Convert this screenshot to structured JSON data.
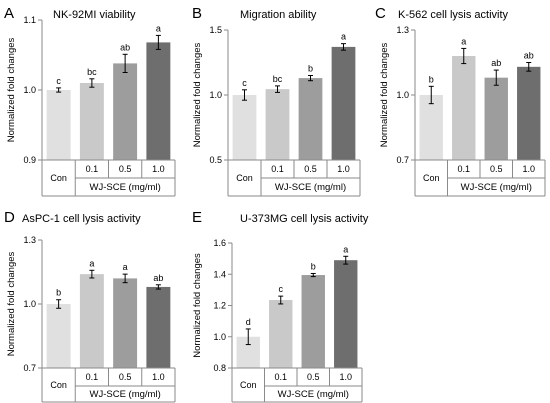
{
  "chart_data": [
    {
      "panel": "A",
      "title": "NK-92MI viability",
      "type": "bar",
      "ylabel": "Normalized fold changes",
      "group_label": "WJ-SCE (mg/ml)",
      "categories": [
        "Con",
        "0.1",
        "0.5",
        "1.0"
      ],
      "values": [
        1.0,
        1.01,
        1.038,
        1.068
      ],
      "errors": [
        0.003,
        0.006,
        0.013,
        0.01
      ],
      "significance": [
        "c",
        "bc",
        "ab",
        "a"
      ],
      "ylim": [
        0.9,
        1.1
      ],
      "yticks": [
        "0.9",
        "1.0",
        "1.1"
      ],
      "ytick_values": [
        0.9,
        1.0,
        1.1
      ],
      "colors": [
        "#e0e0e0",
        "#c9c9c9",
        "#9d9d9d",
        "#6e6e6e"
      ]
    },
    {
      "panel": "B",
      "title": "Migration ability",
      "type": "bar",
      "ylabel": "Normalized fold changes",
      "group_label": "WJ-SCE (mg/ml)",
      "categories": [
        "Con",
        "0.1",
        "0.5",
        "1.0"
      ],
      "values": [
        1.0,
        1.045,
        1.13,
        1.37
      ],
      "errors": [
        0.04,
        0.025,
        0.02,
        0.025
      ],
      "significance": [
        "c",
        "bc",
        "b",
        "a"
      ],
      "ylim": [
        0.5,
        1.5
      ],
      "yticks": [
        "0.5",
        "1.0",
        "1.5"
      ],
      "ytick_values": [
        0.5,
        1.0,
        1.5
      ],
      "colors": [
        "#e0e0e0",
        "#c9c9c9",
        "#9d9d9d",
        "#6e6e6e"
      ]
    },
    {
      "panel": "C",
      "title": "K-562 cell lysis activity",
      "type": "bar",
      "ylabel": "Normalized fold changes",
      "group_label": "WJ-SCE (mg/ml)",
      "categories": [
        "Con",
        "0.1",
        "0.5",
        "1.0"
      ],
      "values": [
        1.0,
        1.18,
        1.08,
        1.13
      ],
      "errors": [
        0.04,
        0.035,
        0.035,
        0.02
      ],
      "significance": [
        "b",
        "a",
        "ab",
        "ab"
      ],
      "ylim": [
        0.7,
        1.3
      ],
      "yticks": [
        "0.7",
        "1.0",
        "1.3"
      ],
      "ytick_values": [
        0.7,
        1.0,
        1.3
      ],
      "colors": [
        "#e0e0e0",
        "#c9c9c9",
        "#9d9d9d",
        "#6e6e6e"
      ]
    },
    {
      "panel": "D",
      "title": "AsPC-1  cell lysis activity",
      "type": "bar",
      "ylabel": "Normalized fold changes",
      "group_label": "WJ-SCE (mg/ml)",
      "categories": [
        "Con",
        "0.1",
        "0.5",
        "1.0"
      ],
      "values": [
        1.0,
        1.14,
        1.12,
        1.08
      ],
      "errors": [
        0.02,
        0.018,
        0.02,
        0.01
      ],
      "significance": [
        "b",
        "a",
        "a",
        "ab"
      ],
      "ylim": [
        0.7,
        1.3
      ],
      "yticks": [
        "0.7",
        "1.0",
        "1.3"
      ],
      "ytick_values": [
        0.7,
        1.0,
        1.3
      ],
      "colors": [
        "#e0e0e0",
        "#c9c9c9",
        "#9d9d9d",
        "#6e6e6e"
      ]
    },
    {
      "panel": "E",
      "title": "U-373MG  cell lysis activity",
      "type": "bar",
      "ylabel": "Normalized fold changes",
      "group_label": "WJ-SCE (mg/ml)",
      "categories": [
        "Con",
        "0.1",
        "0.5",
        "1.0"
      ],
      "values": [
        1.0,
        1.235,
        1.395,
        1.49
      ],
      "errors": [
        0.05,
        0.025,
        0.01,
        0.025
      ],
      "significance": [
        "d",
        "c",
        "b",
        "a"
      ],
      "ylim": [
        0.8,
        1.6
      ],
      "yticks": [
        "0.8",
        "1.0",
        "1.2",
        "1.4",
        "1.6"
      ],
      "ytick_values": [
        0.8,
        1.0,
        1.2,
        1.4,
        1.6
      ],
      "colors": [
        "#e0e0e0",
        "#c9c9c9",
        "#9d9d9d",
        "#6e6e6e"
      ]
    }
  ]
}
